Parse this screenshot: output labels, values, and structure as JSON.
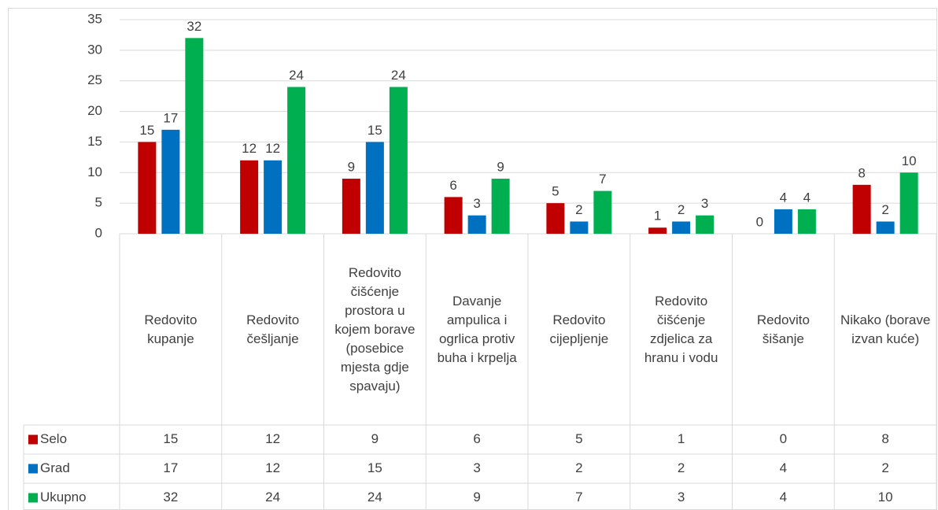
{
  "chart_data": {
    "type": "bar",
    "categories": [
      "Redovito kupanje",
      "Redovito češljanje",
      "Redovito čišćenje prostora u kojem borave (posebice mjesta gdje spavaju)",
      "Davanje ampulica i ogrlica protiv buha i krpelja",
      "Redovito cijepljenje",
      "Redovito čišćenje zdjelica za hranu i vodu",
      "Redovito šišanje",
      "Nikako (borave izvan kuće)"
    ],
    "series": [
      {
        "name": "Selo",
        "color": "#c00000",
        "values": [
          15,
          12,
          9,
          6,
          5,
          1,
          0,
          8
        ]
      },
      {
        "name": "Grad",
        "color": "#0070c0",
        "values": [
          17,
          12,
          15,
          3,
          2,
          2,
          4,
          2
        ]
      },
      {
        "name": "Ukupno",
        "color": "#00b050",
        "values": [
          32,
          24,
          24,
          9,
          7,
          3,
          4,
          10
        ]
      }
    ],
    "ylim": [
      0,
      35
    ],
    "yticks": [
      0,
      5,
      10,
      15,
      20,
      25,
      30,
      35
    ],
    "grid": true,
    "data_table": true
  }
}
